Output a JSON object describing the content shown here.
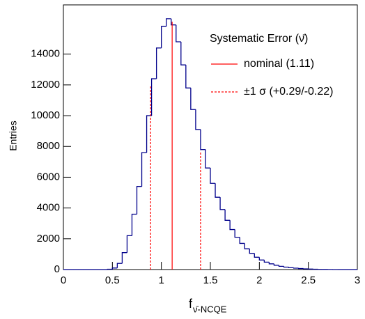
{
  "chart_data": {
    "type": "histogram",
    "x_label": "f",
    "x_label_sub": "ν̄-NCQE",
    "y_label": "Entries",
    "bins": [
      0,
      0.05,
      0.1,
      0.15,
      0.2,
      0.25,
      0.3,
      0.35,
      0.4,
      0.45,
      0.5,
      0.55,
      0.6,
      0.65,
      0.7,
      0.75,
      0.8,
      0.85,
      0.9,
      0.95,
      1,
      1.05,
      1.1,
      1.15,
      1.2,
      1.25,
      1.3,
      1.35,
      1.4,
      1.45,
      1.5,
      1.55,
      1.6,
      1.65,
      1.7,
      1.75,
      1.8,
      1.85,
      1.9,
      1.95,
      2,
      2.05,
      2.1,
      2.15,
      2.2,
      2.25,
      2.3,
      2.35,
      2.4,
      2.45,
      2.5,
      2.55,
      2.6,
      2.65,
      2.7,
      2.75,
      2.8,
      2.85,
      2.9,
      2.95,
      3
    ],
    "values": [
      0,
      0,
      0,
      0,
      0,
      0,
      0,
      0,
      0,
      20,
      100,
      400,
      1100,
      2200,
      3600,
      5400,
      7600,
      10000,
      12400,
      14400,
      15800,
      16300,
      15900,
      14800,
      13300,
      11800,
      10400,
      9100,
      7800,
      6600,
      5600,
      4700,
      3900,
      3200,
      2600,
      2100,
      1700,
      1350,
      1050,
      800,
      620,
      480,
      370,
      280,
      210,
      160,
      120,
      90,
      65,
      45,
      30,
      20,
      12,
      8,
      5,
      0,
      0,
      0,
      0,
      0
    ],
    "color": "#00008b",
    "xlim": [
      0,
      3
    ],
    "ylim": [
      0,
      17200
    ],
    "xticks": [
      0,
      0.5,
      1,
      1.5,
      2,
      2.5,
      3
    ],
    "yticks": [
      0,
      2000,
      4000,
      6000,
      8000,
      10000,
      12000,
      14000
    ],
    "legend_title": "Systematic Error (ν̄)",
    "markers": [
      {
        "name": "nominal (1.11)",
        "x": 1.11,
        "y": 16100,
        "color": "#ff0000",
        "style": "solid"
      },
      {
        "name": "±1 σ (+0.29/-0.22)",
        "x": 0.89,
        "y": 11900,
        "color": "#ff0000",
        "style": "dashed"
      },
      {
        "x": 1.4,
        "y": 7700,
        "color": "#ff0000",
        "style": "dashed"
      }
    ]
  }
}
